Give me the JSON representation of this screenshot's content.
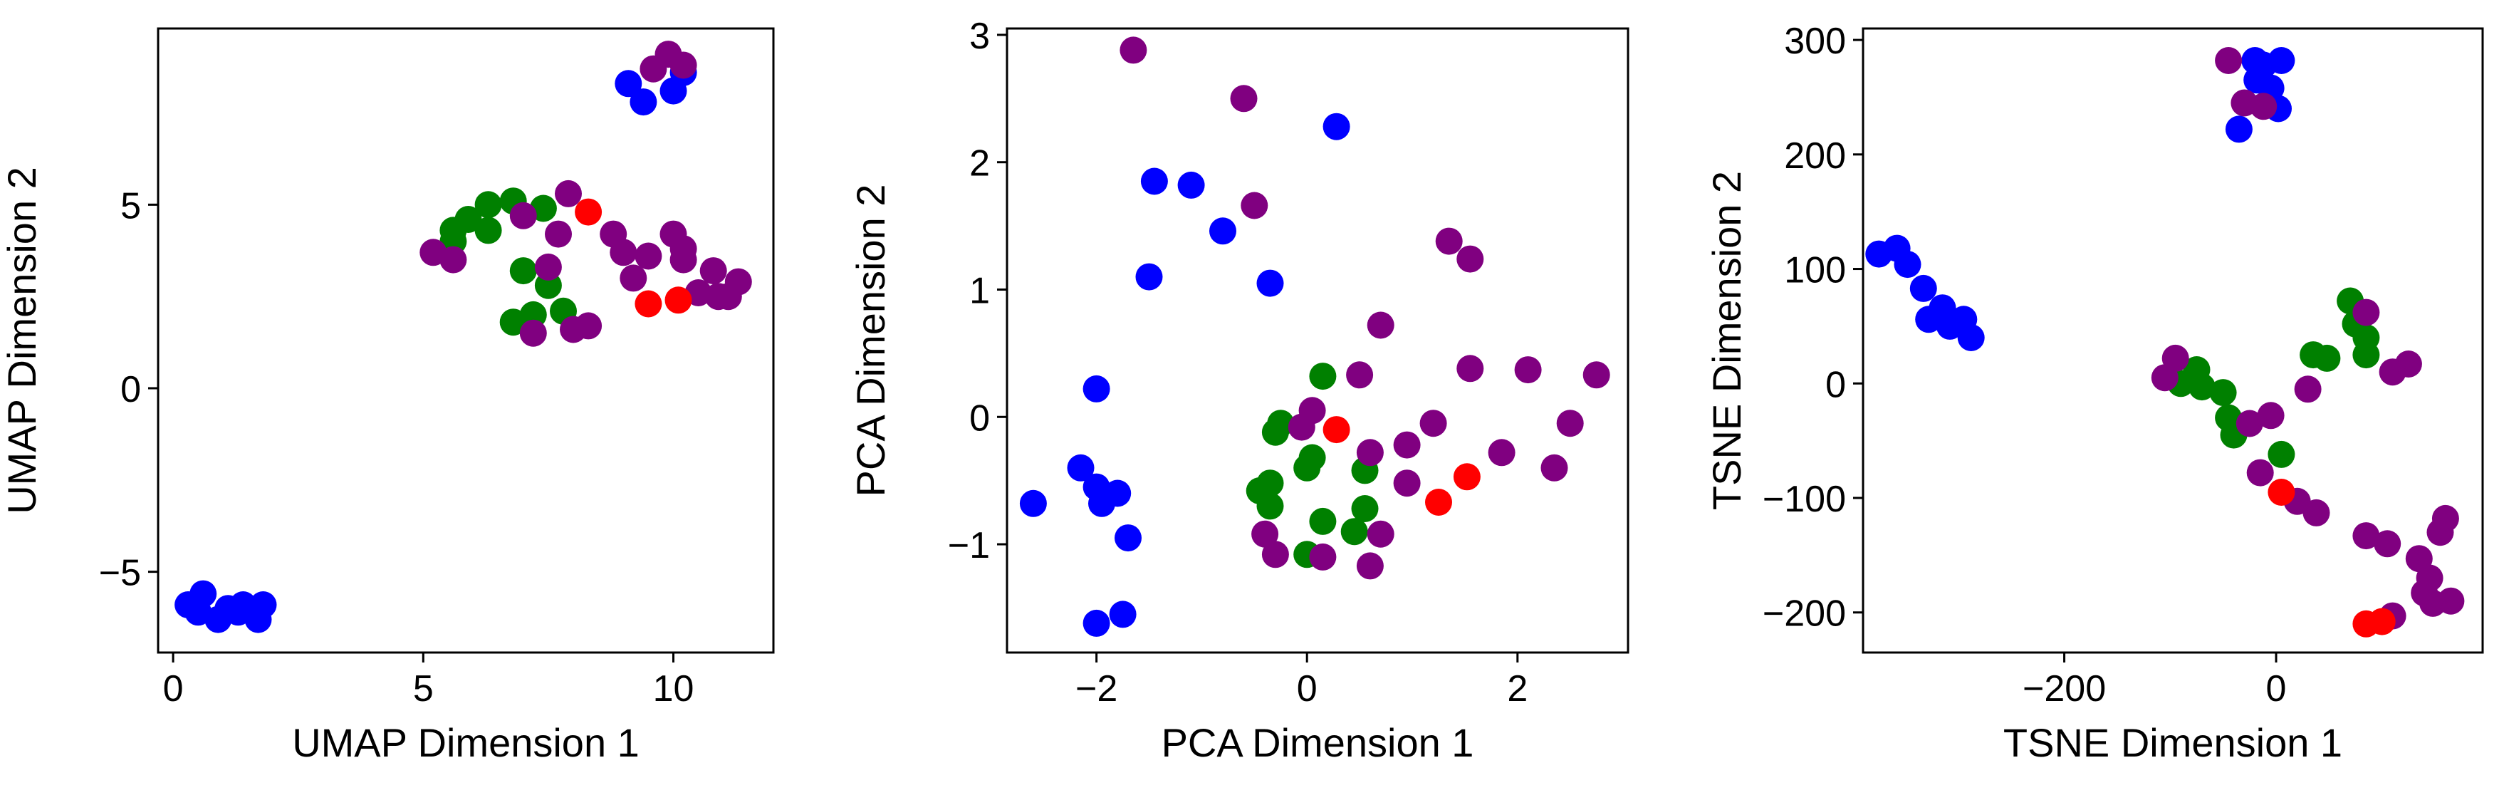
{
  "chart_data": [
    {
      "type": "scatter",
      "xlabel": "UMAP Dimension 1",
      "ylabel": "UMAP Dimension 2",
      "xlim": [
        -0.3,
        12
      ],
      "ylim": [
        -7.2,
        9.8
      ],
      "xticks": [
        0,
        5,
        10
      ],
      "yticks": [
        -5,
        0,
        5
      ],
      "xtick_labels": [
        "0",
        "5",
        "10"
      ],
      "ytick_labels": [
        "−5",
        "0",
        "5"
      ],
      "grid": false,
      "series": [
        {
          "color": "#0000ff",
          "points": [
            [
              0.3,
              -5.9
            ],
            [
              0.6,
              -5.6
            ],
            [
              0.5,
              -6.1
            ],
            [
              0.9,
              -6.3
            ],
            [
              1.1,
              -6.0
            ],
            [
              1.4,
              -5.9
            ],
            [
              1.7,
              -6.3
            ],
            [
              1.8,
              -5.9
            ],
            [
              1.3,
              -6.1
            ],
            [
              9.1,
              8.3
            ],
            [
              9.4,
              7.8
            ],
            [
              10.0,
              8.1
            ],
            [
              10.2,
              8.6
            ]
          ]
        },
        {
          "color": "#008000",
          "points": [
            [
              5.6,
              4.3
            ],
            [
              5.9,
              4.6
            ],
            [
              6.3,
              5.0
            ],
            [
              6.3,
              4.3
            ],
            [
              6.8,
              5.1
            ],
            [
              7.0,
              3.2
            ],
            [
              6.8,
              1.8
            ],
            [
              7.4,
              4.9
            ],
            [
              7.5,
              2.8
            ],
            [
              7.2,
              2.0
            ],
            [
              7.8,
              2.1
            ],
            [
              5.6,
              4.0
            ]
          ]
        },
        {
          "color": "#800080",
          "points": [
            [
              5.2,
              3.7
            ],
            [
              5.6,
              3.5
            ],
            [
              7.0,
              4.7
            ],
            [
              7.7,
              4.2
            ],
            [
              7.5,
              3.3
            ],
            [
              7.9,
              5.3
            ],
            [
              7.2,
              1.5
            ],
            [
              8.0,
              1.6
            ],
            [
              8.3,
              1.7
            ],
            [
              8.8,
              4.2
            ],
            [
              9.0,
              3.7
            ],
            [
              9.2,
              3.0
            ],
            [
              9.5,
              3.6
            ],
            [
              10.0,
              4.2
            ],
            [
              10.2,
              3.8
            ],
            [
              10.2,
              3.5
            ],
            [
              10.5,
              2.6
            ],
            [
              10.8,
              3.2
            ],
            [
              10.9,
              2.5
            ],
            [
              11.1,
              2.5
            ],
            [
              11.3,
              2.9
            ],
            [
              9.6,
              8.7
            ],
            [
              9.9,
              9.1
            ],
            [
              10.2,
              8.8
            ]
          ]
        },
        {
          "color": "#ff0000",
          "points": [
            [
              8.3,
              4.8
            ],
            [
              9.5,
              2.3
            ],
            [
              10.1,
              2.4
            ]
          ]
        }
      ]
    },
    {
      "type": "scatter",
      "xlabel": "PCA Dimension 1",
      "ylabel": "PCA Dimension 2",
      "xlim": [
        -2.85,
        3.05
      ],
      "ylim": [
        -1.85,
        3.05
      ],
      "xticks": [
        -2,
        0,
        2
      ],
      "yticks": [
        -1,
        0,
        1,
        2,
        3
      ],
      "xtick_labels": [
        "−2",
        "0",
        "2"
      ],
      "ytick_labels": [
        "−1",
        "0",
        "1",
        "2",
        "3"
      ],
      "grid": false,
      "series": [
        {
          "color": "#0000ff",
          "points": [
            [
              -2.6,
              -0.68
            ],
            [
              -2.0,
              0.22
            ],
            [
              -2.15,
              -0.4
            ],
            [
              -2.0,
              -0.55
            ],
            [
              -1.95,
              -0.68
            ],
            [
              -1.8,
              -0.6
            ],
            [
              -1.7,
              -0.95
            ],
            [
              -2.0,
              -1.62
            ],
            [
              -1.75,
              -1.55
            ],
            [
              -1.45,
              1.85
            ],
            [
              -1.5,
              1.1
            ],
            [
              -1.1,
              1.82
            ],
            [
              -0.8,
              1.46
            ],
            [
              -0.35,
              1.05
            ],
            [
              0.28,
              2.28
            ]
          ]
        },
        {
          "color": "#008000",
          "points": [
            [
              0.15,
              0.32
            ],
            [
              -0.25,
              -0.05
            ],
            [
              -0.3,
              -0.12
            ],
            [
              -0.45,
              -0.58
            ],
            [
              -0.35,
              -0.52
            ],
            [
              -0.35,
              -0.7
            ],
            [
              0.0,
              -0.4
            ],
            [
              0.05,
              -0.32
            ],
            [
              0.15,
              -0.82
            ],
            [
              0.45,
              -0.9
            ],
            [
              0.55,
              -0.42
            ],
            [
              0.55,
              -0.72
            ],
            [
              0.0,
              -1.08
            ]
          ]
        },
        {
          "color": "#800080",
          "points": [
            [
              -1.65,
              2.88
            ],
            [
              -0.6,
              2.5
            ],
            [
              -0.5,
              1.66
            ],
            [
              0.7,
              0.72
            ],
            [
              1.35,
              1.38
            ],
            [
              1.55,
              1.24
            ],
            [
              0.5,
              0.33
            ],
            [
              1.55,
              0.38
            ],
            [
              2.1,
              0.37
            ],
            [
              2.75,
              0.33
            ],
            [
              2.5,
              -0.05
            ],
            [
              1.2,
              -0.05
            ],
            [
              0.95,
              -0.22
            ],
            [
              0.6,
              -0.28
            ],
            [
              1.85,
              -0.28
            ],
            [
              -0.05,
              -0.08
            ],
            [
              0.05,
              0.05
            ],
            [
              0.95,
              -0.52
            ],
            [
              0.7,
              -0.92
            ],
            [
              0.6,
              -1.17
            ],
            [
              -0.4,
              -0.92
            ],
            [
              -0.3,
              -1.08
            ],
            [
              0.15,
              -1.1
            ],
            [
              2.35,
              -0.4
            ]
          ]
        },
        {
          "color": "#ff0000",
          "points": [
            [
              0.28,
              -0.1
            ],
            [
              1.25,
              -0.67
            ],
            [
              1.52,
              -0.47
            ]
          ]
        }
      ]
    },
    {
      "type": "scatter",
      "xlabel": "TSNE Dimension 1",
      "ylabel": "TSNE Dimension 2",
      "xlim": [
        -390,
        195
      ],
      "ylim": [
        -235,
        310
      ],
      "xticks": [
        -200,
        0
      ],
      "yticks": [
        -200,
        -100,
        0,
        100,
        200,
        300
      ],
      "xtick_labels": [
        "−200",
        "0"
      ],
      "ytick_labels": [
        "−200",
        "−100",
        "0",
        "100",
        "200",
        "300"
      ],
      "grid": false,
      "series": [
        {
          "color": "#0000ff",
          "points": [
            [
              -375,
              113
            ],
            [
              -358,
              118
            ],
            [
              -348,
              104
            ],
            [
              -333,
              83
            ],
            [
              -328,
              56
            ],
            [
              -315,
              66
            ],
            [
              -308,
              50
            ],
            [
              -295,
              56
            ],
            [
              -288,
              40
            ],
            [
              -20,
              282
            ],
            [
              -18,
              265
            ],
            [
              -12,
              278
            ],
            [
              5,
              282
            ],
            [
              -5,
              258
            ],
            [
              -35,
              222
            ],
            [
              2,
              240
            ]
          ]
        },
        {
          "color": "#008000",
          "points": [
            [
              -90,
              0
            ],
            [
              -75,
              12
            ],
            [
              -70,
              -3
            ],
            [
              -50,
              -8
            ],
            [
              -45,
              -30
            ],
            [
              -40,
              -45
            ],
            [
              5,
              -62
            ],
            [
              70,
              72
            ],
            [
              75,
              52
            ],
            [
              85,
              40
            ],
            [
              85,
              25
            ],
            [
              35,
              25
            ],
            [
              48,
              22
            ]
          ]
        },
        {
          "color": "#800080",
          "points": [
            [
              -45,
              282
            ],
            [
              -30,
              245
            ],
            [
              -12,
              242
            ],
            [
              -105,
              5
            ],
            [
              -95,
              22
            ],
            [
              -25,
              -35
            ],
            [
              -5,
              -28
            ],
            [
              -15,
              -78
            ],
            [
              30,
              -5
            ],
            [
              85,
              62
            ],
            [
              110,
              10
            ],
            [
              125,
              17
            ],
            [
              20,
              -103
            ],
            [
              38,
              -113
            ],
            [
              85,
              -133
            ],
            [
              105,
              -140
            ],
            [
              135,
              -153
            ],
            [
              145,
              -170
            ],
            [
              155,
              -130
            ],
            [
              160,
              -118
            ],
            [
              140,
              -183
            ],
            [
              165,
              -190
            ],
            [
              148,
              -192
            ],
            [
              110,
              -203
            ]
          ]
        },
        {
          "color": "#ff0000",
          "points": [
            [
              5,
              -95
            ],
            [
              85,
              -210
            ],
            [
              100,
              -208
            ]
          ]
        }
      ]
    }
  ]
}
